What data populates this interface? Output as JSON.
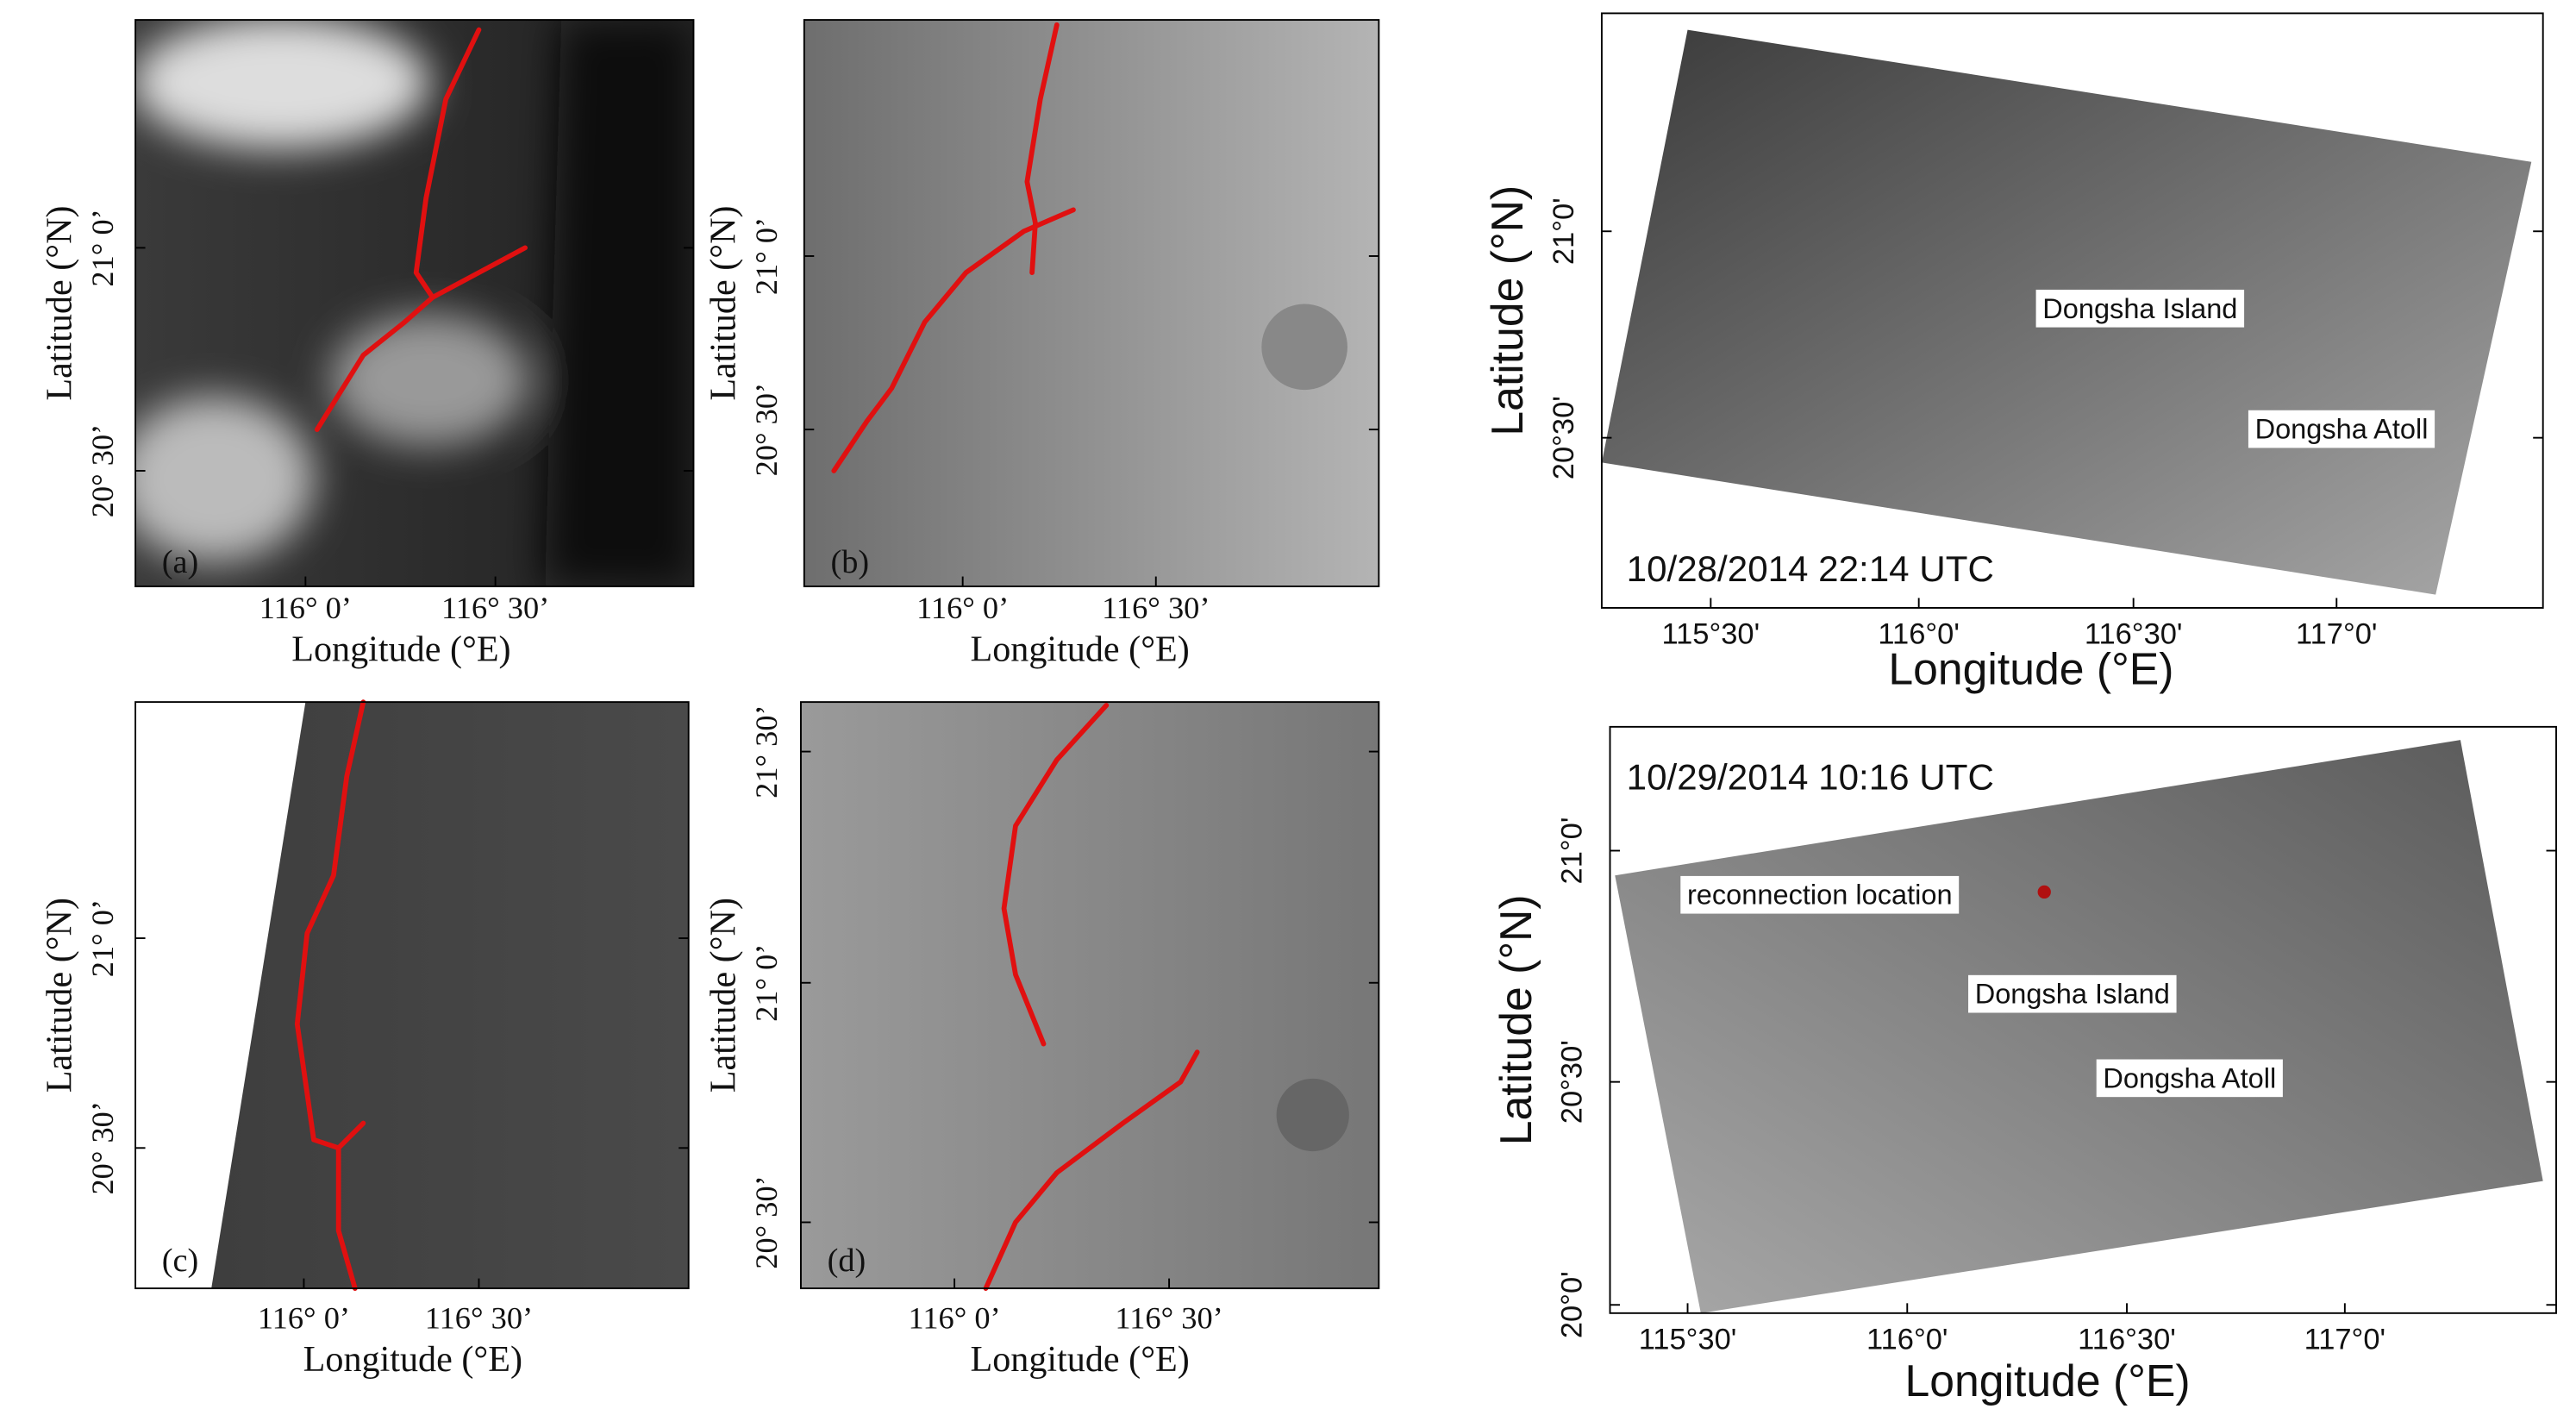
{
  "panels": [
    {
      "label": "(a)",
      "x_axis_label": "Longitude (°E)",
      "y_axis_label": "Latitude (°N)",
      "x_tick_labels": [
        "116° 0’",
        "116° 30’"
      ],
      "y_tick_labels": [
        "21° 0’",
        "20° 30’"
      ]
    },
    {
      "label": "(b)",
      "x_axis_label": "Longitude (°E)",
      "y_axis_label": "Latitude (°N)",
      "x_tick_labels": [
        "116° 0’",
        "116° 30’"
      ],
      "y_tick_labels": [
        "21° 0’",
        "20° 30’"
      ]
    },
    {
      "label": "(c)",
      "x_axis_label": "Longitude (°E)",
      "y_axis_label": "Latitude (°N)",
      "x_tick_labels": [
        "116° 0’",
        "116° 30’"
      ],
      "y_tick_labels": [
        "21° 0’",
        "20° 30’"
      ]
    },
    {
      "label": "(d)",
      "x_axis_label": "Longitude (°E)",
      "y_axis_label": "Latitude (°N)",
      "x_tick_labels": [
        "116° 0’",
        "116° 30’"
      ],
      "y_tick_labels": [
        "21° 30’",
        "21° 0’",
        "20° 30’"
      ]
    },
    {
      "timestamp": "10/28/2014 22:14 UTC",
      "x_axis_label": "Longitude (°E)",
      "y_axis_label": "Latitude (°N)",
      "x_tick_labels": [
        "115°30'",
        "116°0'",
        "116°30'",
        "117°0'"
      ],
      "y_tick_labels": [
        "21°0'",
        "20°30'"
      ],
      "annotations": [
        "Dongsha Island",
        "Dongsha Atoll"
      ]
    },
    {
      "timestamp": "10/29/2014 10:16 UTC",
      "x_axis_label": "Longitude (°E)",
      "y_axis_label": "Latitude (°N)",
      "x_tick_labels": [
        "115°30'",
        "116°0'",
        "116°30'",
        "117°0'"
      ],
      "y_tick_labels": [
        "21°0'",
        "20°30'",
        "20°0'"
      ],
      "annotations": [
        "reconnection location",
        "Dongsha Island",
        "Dongsha Atoll"
      ]
    }
  ]
}
